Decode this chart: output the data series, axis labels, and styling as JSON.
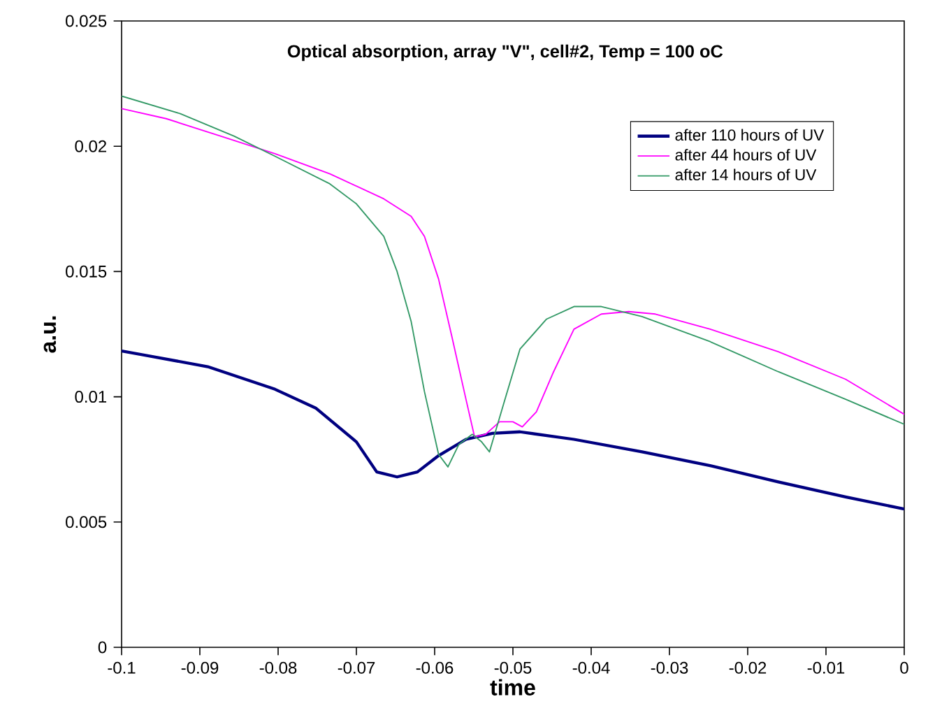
{
  "chart_data": {
    "type": "line",
    "title": "Optical absorption, array \"V\", cell#2, Temp = 100 oC",
    "xlabel": "time",
    "ylabel": "a.u.",
    "xlim": [
      -0.1,
      0
    ],
    "ylim": [
      0,
      0.025
    ],
    "xticks": [
      -0.1,
      -0.09,
      -0.08,
      -0.07,
      -0.06,
      -0.05,
      -0.04,
      -0.03,
      -0.02,
      -0.01,
      0
    ],
    "yticks": [
      0,
      0.005,
      0.01,
      0.015,
      0.02,
      0.025
    ],
    "grid": false,
    "legend": "top right",
    "marker": "none",
    "line_style": "solid",
    "series": [
      {
        "name": "after 110 hours of UV",
        "color": "#000080",
        "x": [
          -0.1,
          -0.089,
          -0.0804,
          -0.0752,
          -0.07,
          -0.0674,
          -0.0648,
          -0.0622,
          -0.0595,
          -0.056,
          -0.0526,
          -0.0491,
          -0.0422,
          -0.0335,
          -0.0248,
          -0.0161,
          -0.0075,
          0
        ],
        "values": [
          0.01183,
          0.0112,
          0.0103,
          0.00955,
          0.0082,
          0.007,
          0.0068,
          0.007,
          0.00765,
          0.0083,
          0.00854,
          0.0086,
          0.0083,
          0.0078,
          0.00725,
          0.0066,
          0.006,
          0.00552
        ]
      },
      {
        "name": "after 44 hours of UV",
        "color": "#ff00ff",
        "x": [
          -0.1,
          -0.0943,
          -0.0873,
          -0.0804,
          -0.0734,
          -0.0665,
          -0.063,
          -0.0613,
          -0.0595,
          -0.0578,
          -0.056,
          -0.0549,
          -0.0535,
          -0.0517,
          -0.05,
          -0.0488,
          -0.047,
          -0.0448,
          -0.0422,
          -0.0387,
          -0.0352,
          -0.0318,
          -0.0248,
          -0.0161,
          -0.0075,
          0
        ],
        "values": [
          0.0215,
          0.0211,
          0.0204,
          0.0197,
          0.0189,
          0.0179,
          0.0172,
          0.0164,
          0.0147,
          0.0124,
          0.0099,
          0.0084,
          0.0085,
          0.009,
          0.009,
          0.0088,
          0.0094,
          0.011,
          0.0127,
          0.0133,
          0.0134,
          0.0133,
          0.0127,
          0.0118,
          0.0107,
          0.0093
        ]
      },
      {
        "name": "after 14 hours of UV",
        "color": "#339966",
        "x": [
          -0.1,
          -0.0925,
          -0.0856,
          -0.0804,
          -0.0734,
          -0.07,
          -0.0665,
          -0.0648,
          -0.063,
          -0.0613,
          -0.0595,
          -0.0583,
          -0.0569,
          -0.0552,
          -0.054,
          -0.053,
          -0.0512,
          -0.0491,
          -0.0457,
          -0.0422,
          -0.0387,
          -0.0335,
          -0.0248,
          -0.0161,
          -0.0075,
          0
        ],
        "values": [
          0.022,
          0.0213,
          0.0204,
          0.0196,
          0.0185,
          0.0177,
          0.0164,
          0.015,
          0.013,
          0.0102,
          0.0077,
          0.0072,
          0.0081,
          0.0085,
          0.0082,
          0.0078,
          0.0097,
          0.0119,
          0.0131,
          0.0136,
          0.0136,
          0.0132,
          0.0122,
          0.011,
          0.0099,
          0.0089
        ]
      }
    ]
  }
}
